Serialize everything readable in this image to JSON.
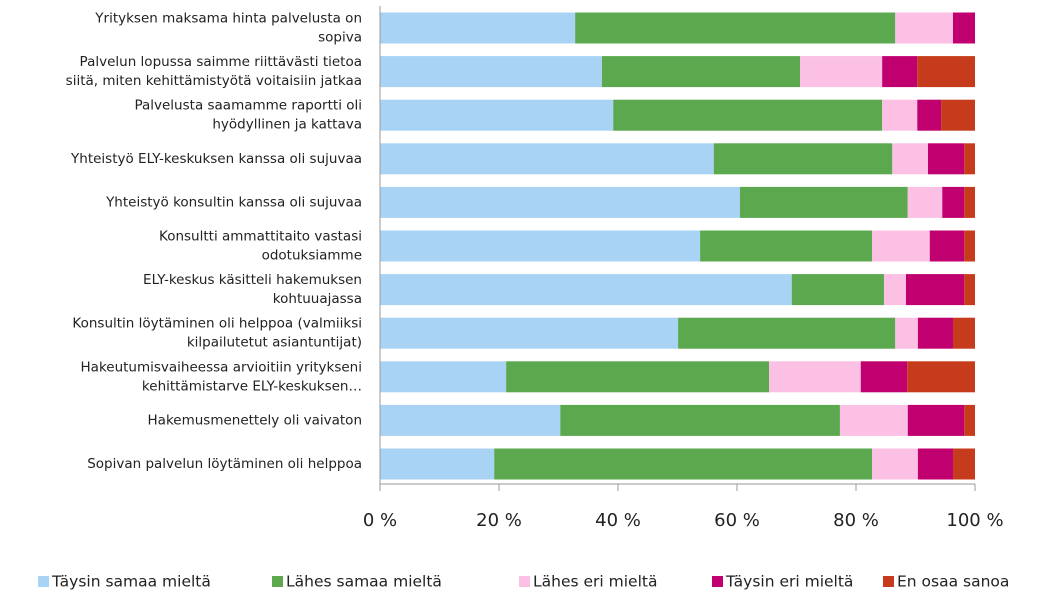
{
  "chart_data": {
    "type": "bar",
    "orientation": "horizontal",
    "stacked": true,
    "categories": [
      "Yrityksen maksama hinta palvelusta on\nsopiva",
      "Palvelun lopussa saimme riittävästi tietoa\nsiitä, miten kehittämistyötä voitaisiin jatkaa",
      "Palvelusta saamamme raportti oli\nhyödyllinen ja kattava",
      "Yhteistyö ELY-keskuksen kanssa oli sujuvaa",
      "Yhteistyö konsultin kanssa oli sujuvaa",
      "Konsultti ammattitaito vastasi\nodotuksiamme",
      "ELY-keskus käsitteli hakemuksen\nkohtuuajassa",
      "Konsultin löytäminen oli helppoa (valmiiksi\nkilpailutetut asiantuntijat)",
      "Hakeutumisvaiheessa arvioitiin yritykseni\nkehittämistarve ELY-keskuksen…",
      "Hakemusmenettely oli vaivaton",
      "Sopivan palvelun löytäminen oli helppoa"
    ],
    "series": [
      {
        "name": "Täysin samaa mieltä",
        "color": "#a9d3f5",
        "values": [
          32.8,
          37.3,
          39.2,
          56.1,
          60.5,
          53.8,
          69.2,
          50.1,
          21.2,
          30.3,
          19.2
        ]
      },
      {
        "name": "Lähes samaa mieltä",
        "color": "#5ba84e",
        "values": [
          53.8,
          33.3,
          45.2,
          30.0,
          28.2,
          28.9,
          15.5,
          36.5,
          44.2,
          47.0,
          63.5
        ]
      },
      {
        "name": "Lähes eri mieltä",
        "color": "#fbc0e4",
        "values": [
          9.7,
          13.8,
          5.9,
          6.0,
          5.8,
          9.7,
          3.7,
          3.8,
          15.4,
          11.4,
          7.7
        ]
      },
      {
        "name": "Täysin eri mieltä",
        "color": "#c1006f",
        "values": [
          3.7,
          5.9,
          4.0,
          6.1,
          3.7,
          5.8,
          9.8,
          5.9,
          7.8,
          9.5,
          5.9
        ]
      },
      {
        "name": "En osaa sanoa",
        "color": "#c63b1b",
        "values": [
          0,
          9.7,
          5.7,
          1.8,
          1.8,
          1.8,
          1.8,
          3.7,
          11.4,
          1.8,
          3.7
        ]
      }
    ],
    "xlim": [
      0,
      100
    ],
    "xticks": [
      {
        "value": 0,
        "label": "0 %"
      },
      {
        "value": 20,
        "label": "20 %"
      },
      {
        "value": 40,
        "label": "40 %"
      },
      {
        "value": 60,
        "label": "60 %"
      },
      {
        "value": 80,
        "label": "80 %"
      },
      {
        "value": 100,
        "label": "100 %"
      }
    ],
    "legend": "bottom"
  }
}
